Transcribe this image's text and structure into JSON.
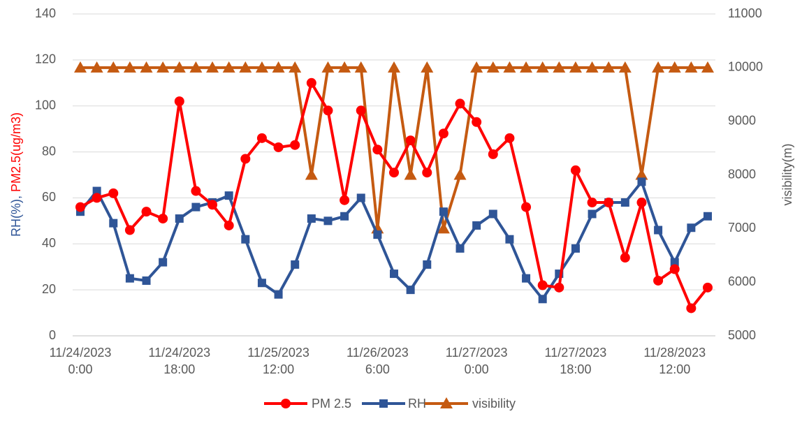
{
  "chart_data": {
    "type": "line",
    "categories": [
      "11/24/2023 0:00",
      null,
      null,
      null,
      null,
      null,
      "11/24/2023 18:00",
      null,
      null,
      null,
      null,
      null,
      "11/25/2023 12:00",
      null,
      null,
      null,
      null,
      null,
      "11/26/2023 6:00",
      null,
      null,
      null,
      null,
      null,
      "11/27/2023 0:00",
      null,
      null,
      null,
      null,
      null,
      "11/27/2023 18:00",
      null,
      null,
      null,
      null,
      null,
      "11/28/2023 12:00",
      null,
      null
    ],
    "series": [
      {
        "name": "PM 2.5",
        "color": "#ff0000",
        "marker": "circle",
        "axis": "y",
        "values": [
          56,
          60,
          62,
          46,
          54,
          51,
          102,
          63,
          57,
          48,
          77,
          86,
          82,
          83,
          110,
          98,
          59,
          98,
          81,
          71,
          85,
          71,
          88,
          101,
          93,
          79,
          86,
          56,
          22,
          21,
          72,
          58,
          58,
          34,
          58,
          24,
          29,
          12,
          21
        ]
      },
      {
        "name": "RH",
        "color": "#2f5597",
        "marker": "square",
        "axis": "y",
        "values": [
          54,
          63,
          49,
          25,
          24,
          32,
          51,
          56,
          58,
          61,
          42,
          23,
          18,
          31,
          51,
          50,
          52,
          60,
          44,
          27,
          20,
          31,
          54,
          38,
          48,
          53,
          42,
          25,
          16,
          27,
          38,
          53,
          58,
          58,
          67,
          46,
          32,
          47,
          52
        ]
      },
      {
        "name": "visibility",
        "color": "#c55a11",
        "marker": "triangle",
        "axis": "y2",
        "values": [
          10000,
          10000,
          10000,
          10000,
          10000,
          10000,
          10000,
          10000,
          10000,
          10000,
          10000,
          10000,
          10000,
          10000,
          8000,
          10000,
          10000,
          10000,
          7000,
          10000,
          8000,
          10000,
          7000,
          8000,
          10000,
          10000,
          10000,
          10000,
          10000,
          10000,
          10000,
          10000,
          10000,
          10000,
          8000,
          10000,
          10000,
          10000,
          10000
        ]
      }
    ],
    "y_label": [
      {
        "text": "RH(%), ",
        "color": "#2f5597"
      },
      {
        "text": "PM2.5(ug/m3)",
        "color": "#ff0000"
      }
    ],
    "y2_label": {
      "text": "visibility(m)",
      "color": "#c55a11"
    },
    "ylim": [
      0,
      140
    ],
    "yticks": [
      0,
      20,
      40,
      60,
      80,
      100,
      120,
      140
    ],
    "y2lim": [
      5000,
      11000
    ],
    "y2ticks": [
      5000,
      6000,
      7000,
      8000,
      9000,
      10000,
      11000
    ],
    "grid": true,
    "legend": "bottom"
  }
}
